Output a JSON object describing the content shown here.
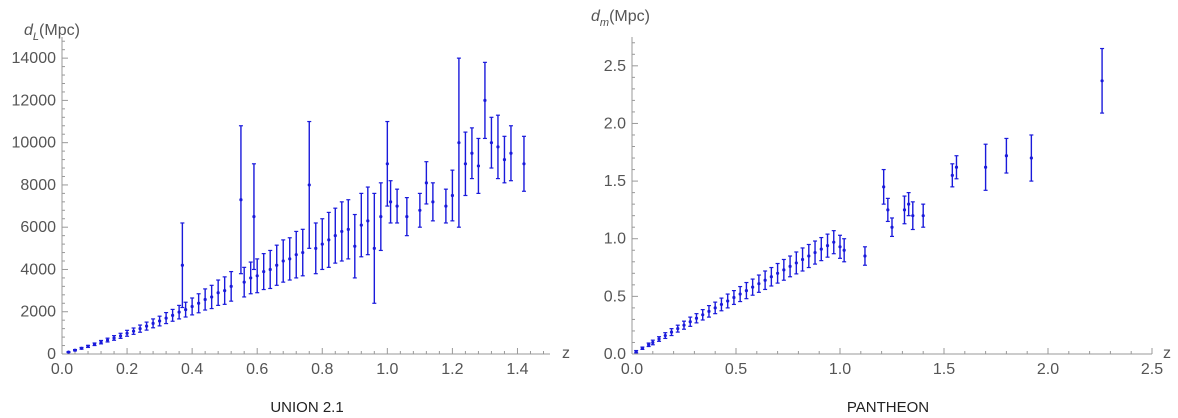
{
  "chart_data": [
    {
      "type": "scatter",
      "title": "UNION 2.1",
      "xlabel": "z",
      "ylabel_main": "d",
      "ylabel_sub": "L",
      "ylabel_unit": "(Mpc)",
      "xlim": [
        0,
        1.5
      ],
      "ylim": [
        0,
        15000
      ],
      "x_ticks": [
        0.0,
        0.2,
        0.4,
        0.6,
        0.8,
        1.0,
        1.2,
        1.4
      ],
      "x_tick_labels": [
        "0.0",
        "0.2",
        "0.4",
        "0.6",
        "0.8",
        "1.0",
        "1.2",
        "1.4"
      ],
      "y_ticks": [
        0,
        2000,
        4000,
        6000,
        8000,
        10000,
        12000,
        14000
      ],
      "y_tick_labels": [
        "0",
        "2000",
        "4000",
        "6000",
        "8000",
        "10000",
        "12000",
        "14000"
      ],
      "series": [
        {
          "color": "#1a1adb",
          "points": [
            [
              0.02,
              90,
              20
            ],
            [
              0.04,
              180,
              30
            ],
            [
              0.06,
              270,
              40
            ],
            [
              0.08,
              360,
              50
            ],
            [
              0.1,
              460,
              60
            ],
            [
              0.12,
              560,
              80
            ],
            [
              0.14,
              660,
              90
            ],
            [
              0.16,
              760,
              110
            ],
            [
              0.18,
              860,
              120
            ],
            [
              0.2,
              980,
              140
            ],
            [
              0.22,
              1080,
              150
            ],
            [
              0.24,
              1200,
              170
            ],
            [
              0.26,
              1320,
              190
            ],
            [
              0.28,
              1450,
              210
            ],
            [
              0.3,
              1560,
              230
            ],
            [
              0.32,
              1700,
              260
            ],
            [
              0.34,
              1830,
              280
            ],
            [
              0.36,
              1980,
              320
            ],
            [
              0.37,
              4200,
              2000
            ],
            [
              0.38,
              2100,
              350
            ],
            [
              0.4,
              2250,
              400
            ],
            [
              0.42,
              2400,
              450
            ],
            [
              0.44,
              2580,
              500
            ],
            [
              0.46,
              2700,
              550
            ],
            [
              0.48,
              2900,
              600
            ],
            [
              0.5,
              3000,
              650
            ],
            [
              0.52,
              3200,
              700
            ],
            [
              0.55,
              7300,
              3500
            ],
            [
              0.56,
              3400,
              700
            ],
            [
              0.58,
              3600,
              750
            ],
            [
              0.59,
              6500,
              2500
            ],
            [
              0.6,
              3700,
              800
            ],
            [
              0.62,
              3900,
              850
            ],
            [
              0.64,
              4000,
              900
            ],
            [
              0.66,
              4200,
              950
            ],
            [
              0.68,
              4400,
              1000
            ],
            [
              0.7,
              4500,
              1000
            ],
            [
              0.72,
              4700,
              1100
            ],
            [
              0.74,
              4800,
              1100
            ],
            [
              0.76,
              8000,
              3000
            ],
            [
              0.78,
              5000,
              1200
            ],
            [
              0.8,
              5200,
              1200
            ],
            [
              0.82,
              5400,
              1300
            ],
            [
              0.84,
              5600,
              1300
            ],
            [
              0.86,
              5800,
              1400
            ],
            [
              0.88,
              5900,
              1400
            ],
            [
              0.9,
              5100,
              1500
            ],
            [
              0.92,
              6100,
              1500
            ],
            [
              0.94,
              6300,
              1600
            ],
            [
              0.96,
              5000,
              2600
            ],
            [
              0.98,
              6500,
              1600
            ],
            [
              1.0,
              9000,
              2000
            ],
            [
              1.01,
              7200,
              1000
            ],
            [
              1.03,
              7000,
              800
            ],
            [
              1.06,
              6500,
              900
            ],
            [
              1.1,
              6800,
              800
            ],
            [
              1.12,
              8100,
              1000
            ],
            [
              1.14,
              7200,
              900
            ],
            [
              1.18,
              7000,
              800
            ],
            [
              1.2,
              7500,
              1200
            ],
            [
              1.22,
              10000,
              4000
            ],
            [
              1.24,
              9000,
              1500
            ],
            [
              1.26,
              9500,
              1200
            ],
            [
              1.28,
              8900,
              1300
            ],
            [
              1.3,
              12000,
              1800
            ],
            [
              1.32,
              10000,
              1200
            ],
            [
              1.34,
              9800,
              1500
            ],
            [
              1.36,
              9200,
              1100
            ],
            [
              1.38,
              9500,
              1300
            ],
            [
              1.42,
              9000,
              1300
            ]
          ]
        }
      ]
    },
    {
      "type": "scatter",
      "title": "PANTHEON",
      "xlabel": "z",
      "ylabel_main": "d",
      "ylabel_sub": "m",
      "ylabel_unit": "(Mpc)",
      "xlim": [
        0,
        2.5
      ],
      "ylim": [
        0,
        2.75
      ],
      "x_ticks": [
        0.0,
        0.5,
        1.0,
        1.5,
        2.0,
        2.5
      ],
      "x_tick_labels": [
        "0.0",
        "0.5",
        "1.0",
        "1.5",
        "2.0",
        "2.5"
      ],
      "y_ticks": [
        0.0,
        0.5,
        1.0,
        1.5,
        2.0,
        2.5
      ],
      "y_tick_labels": [
        "0.0",
        "0.5",
        "1.0",
        "1.5",
        "2.0",
        "2.5"
      ],
      "series": [
        {
          "color": "#1a1adb",
          "points": [
            [
              0.02,
              0.02,
              0.01
            ],
            [
              0.05,
              0.05,
              0.01
            ],
            [
              0.08,
              0.08,
              0.015
            ],
            [
              0.1,
              0.1,
              0.02
            ],
            [
              0.13,
              0.13,
              0.02
            ],
            [
              0.16,
              0.16,
              0.025
            ],
            [
              0.19,
              0.19,
              0.03
            ],
            [
              0.22,
              0.22,
              0.03
            ],
            [
              0.25,
              0.25,
              0.035
            ],
            [
              0.28,
              0.28,
              0.04
            ],
            [
              0.31,
              0.31,
              0.04
            ],
            [
              0.34,
              0.34,
              0.045
            ],
            [
              0.37,
              0.37,
              0.05
            ],
            [
              0.4,
              0.4,
              0.05
            ],
            [
              0.43,
              0.43,
              0.055
            ],
            [
              0.46,
              0.46,
              0.06
            ],
            [
              0.49,
              0.49,
              0.06
            ],
            [
              0.52,
              0.52,
              0.065
            ],
            [
              0.55,
              0.55,
              0.07
            ],
            [
              0.58,
              0.58,
              0.07
            ],
            [
              0.61,
              0.61,
              0.075
            ],
            [
              0.64,
              0.64,
              0.08
            ],
            [
              0.67,
              0.67,
              0.08
            ],
            [
              0.7,
              0.7,
              0.085
            ],
            [
              0.73,
              0.73,
              0.09
            ],
            [
              0.76,
              0.76,
              0.09
            ],
            [
              0.79,
              0.79,
              0.095
            ],
            [
              0.82,
              0.82,
              0.1
            ],
            [
              0.85,
              0.85,
              0.1
            ],
            [
              0.88,
              0.88,
              0.1
            ],
            [
              0.91,
              0.91,
              0.1
            ],
            [
              0.94,
              0.94,
              0.1
            ],
            [
              0.97,
              0.97,
              0.1
            ],
            [
              1.0,
              0.93,
              0.1
            ],
            [
              1.02,
              0.9,
              0.1
            ],
            [
              1.12,
              0.85,
              0.08
            ],
            [
              1.21,
              1.45,
              0.15
            ],
            [
              1.23,
              1.25,
              0.1
            ],
            [
              1.25,
              1.1,
              0.08
            ],
            [
              1.31,
              1.25,
              0.12
            ],
            [
              1.33,
              1.3,
              0.1
            ],
            [
              1.35,
              1.2,
              0.12
            ],
            [
              1.4,
              1.2,
              0.1
            ],
            [
              1.54,
              1.55,
              0.1
            ],
            [
              1.56,
              1.62,
              0.1
            ],
            [
              1.7,
              1.62,
              0.2
            ],
            [
              1.8,
              1.72,
              0.15
            ],
            [
              1.92,
              1.7,
              0.2
            ],
            [
              2.26,
              2.37,
              0.28
            ]
          ]
        }
      ]
    }
  ]
}
